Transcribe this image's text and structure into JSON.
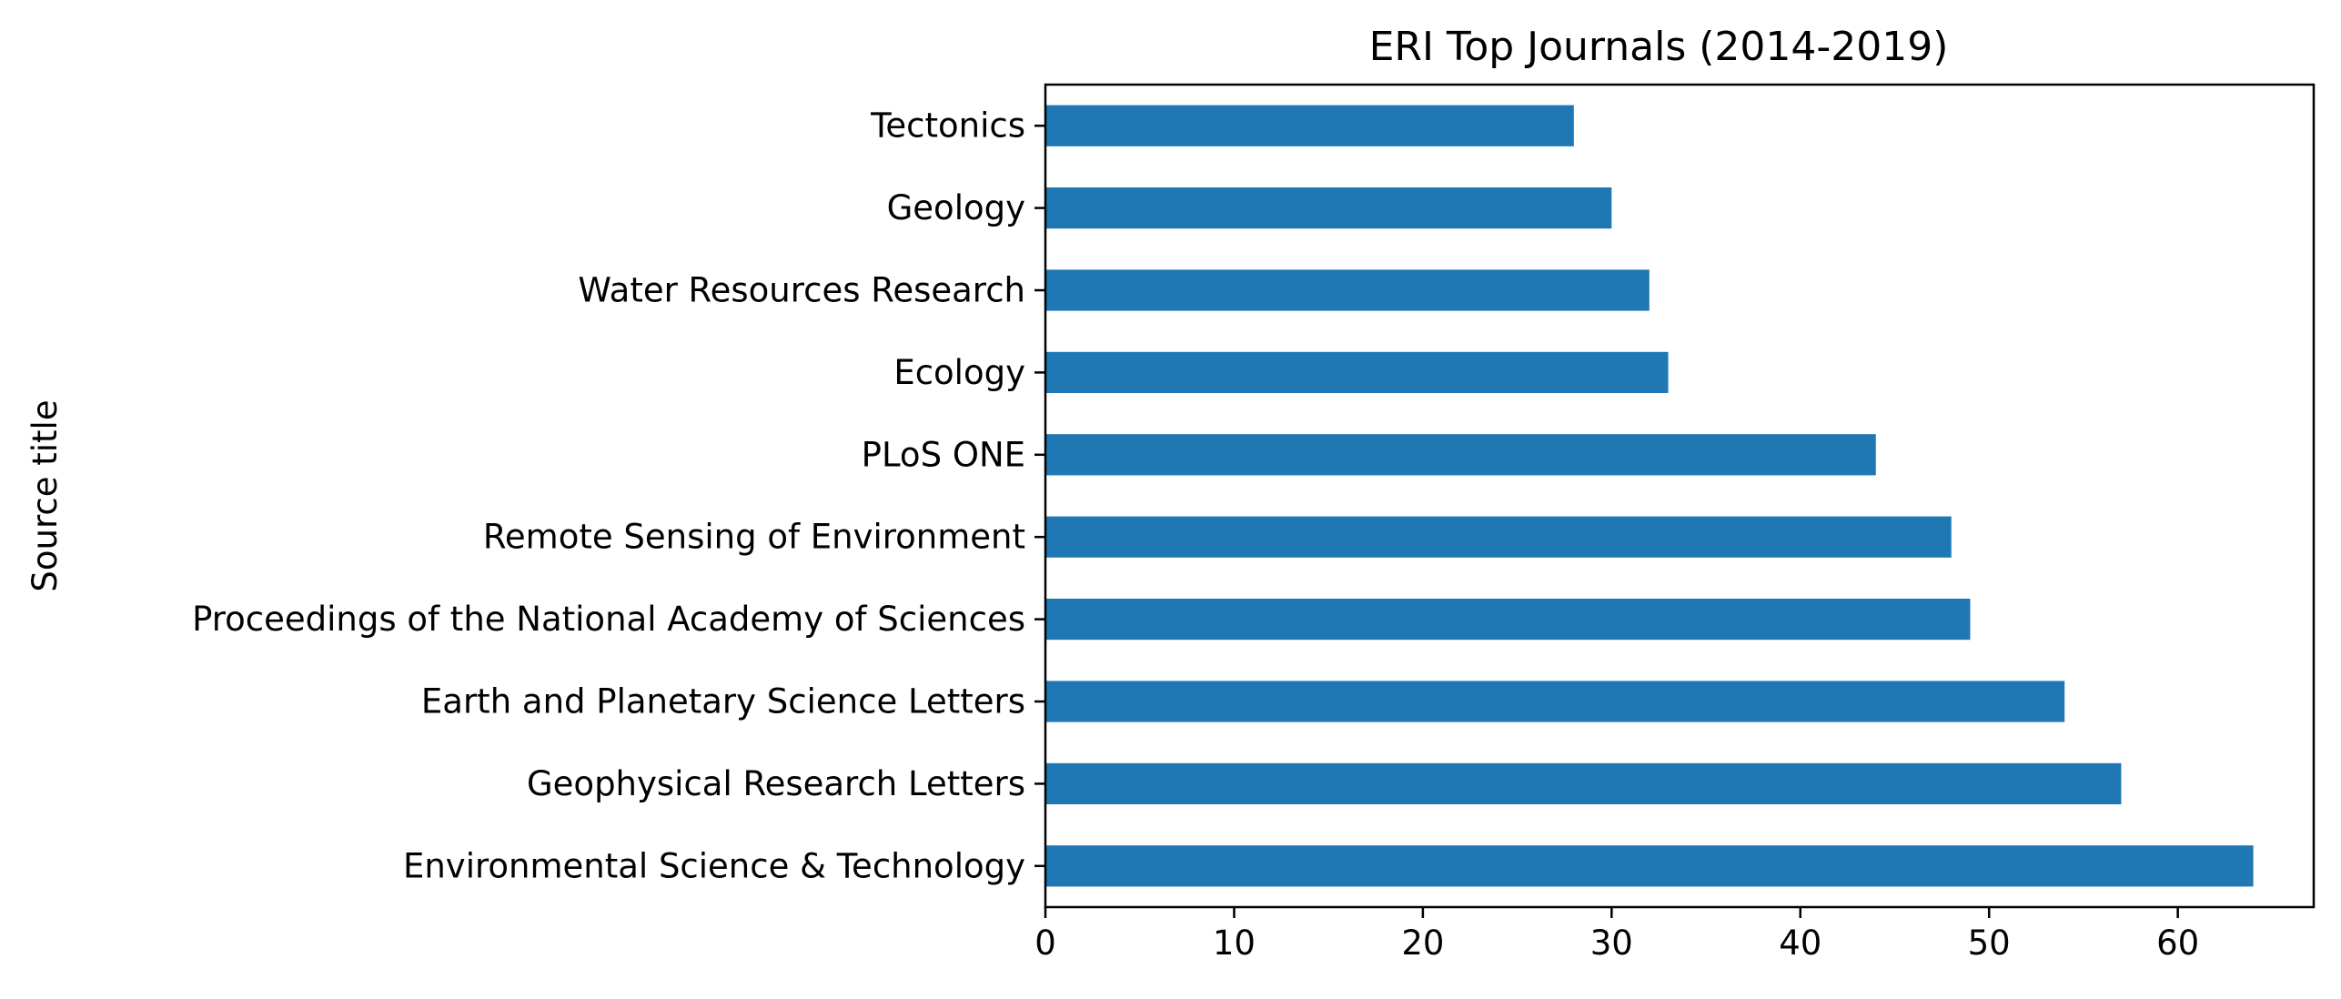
{
  "chart_data": {
    "type": "bar",
    "orientation": "horizontal",
    "title": "ERI Top Journals (2014-2019)",
    "xlabel": "",
    "ylabel": "Source title",
    "categories": [
      "Environmental Science & Technology",
      "Geophysical Research Letters",
      "Earth and Planetary Science Letters",
      "Proceedings of the National Academy of Sciences",
      "Remote Sensing of Environment",
      "PLoS ONE",
      "Ecology",
      "Water Resources Research",
      "Geology",
      "Tectonics"
    ],
    "values": [
      64,
      57,
      54,
      49,
      48,
      44,
      33,
      32,
      30,
      28
    ],
    "xlim": [
      0,
      67.2
    ],
    "xticks": [
      0,
      10,
      20,
      30,
      40,
      50,
      60
    ],
    "grid": false,
    "legend": "none",
    "bar_color": "#1f77b4"
  }
}
